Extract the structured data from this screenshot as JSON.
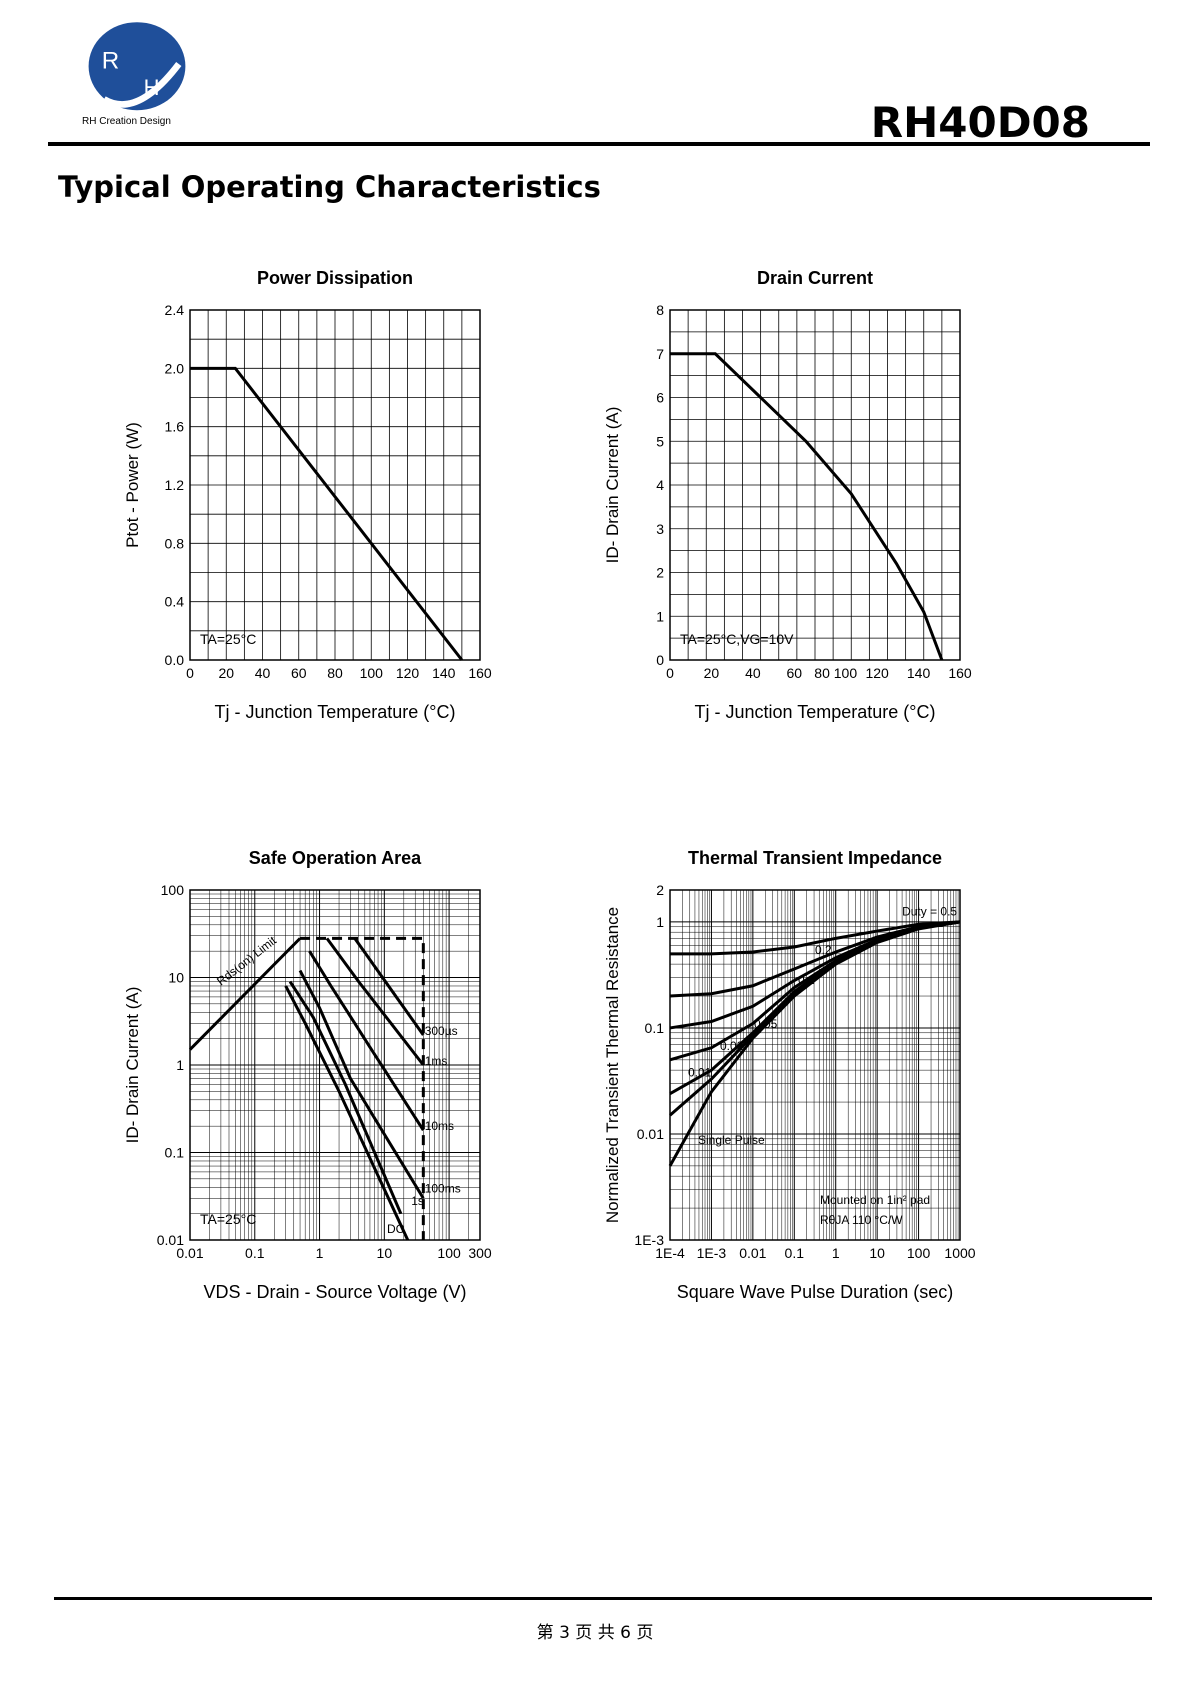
{
  "header": {
    "brand_text": "RH Creation Design",
    "logo_letters": "RH",
    "part_number": "RH40D08"
  },
  "section_title": "Typical Operating Characteristics",
  "footer": {
    "page_text": "第 3 页 共 6 页"
  },
  "colors": {
    "logo_blue": "#1f4f9a",
    "ink": "#000000"
  },
  "chart_data": [
    {
      "type": "line",
      "title": "Power Dissipation",
      "xlabel": "Tj - Junction Temperature (°C)",
      "ylabel": "Ptot - Power (W)",
      "xlim": [
        0,
        160
      ],
      "ylim": [
        0,
        2.4
      ],
      "xticks": [
        "0",
        "20",
        "40",
        "60",
        "80",
        "100",
        "120",
        "140",
        "160"
      ],
      "yticks": [
        "0.0",
        "0.4",
        "0.8",
        "1.2",
        "1.6",
        "2.0",
        "2.4"
      ],
      "grid": true,
      "annotation": "TA=25°C",
      "series": [
        {
          "x": [
            0,
            25,
            150
          ],
          "y": [
            2.0,
            2.0,
            0.0
          ]
        }
      ]
    },
    {
      "type": "line",
      "title": "Drain Current",
      "xlabel": "Tj - Junction Temperature (°C)",
      "ylabel": "ID- Drain Current (A)",
      "xlim": [
        0,
        160
      ],
      "ylim": [
        0,
        8
      ],
      "xticks": [
        "0",
        "20",
        "40",
        "60",
        "80 100",
        "120",
        "140",
        "160"
      ],
      "yticks": [
        "0",
        "1",
        "2",
        "3",
        "4",
        "5",
        "6",
        "7",
        "8"
      ],
      "grid": true,
      "annotation": "TA=25°C,VG=10V",
      "series": [
        {
          "x": [
            0,
            25,
            50,
            75,
            100,
            125,
            140,
            150
          ],
          "y": [
            7,
            7,
            6.0,
            5.0,
            3.8,
            2.2,
            1.1,
            0
          ]
        }
      ]
    },
    {
      "type": "line",
      "title": "Safe Operation Area",
      "xlabel": "VDS - Drain - Source Voltage (V)",
      "ylabel": "ID- Drain Current (A)",
      "xscale": "log",
      "yscale": "log",
      "xlim": [
        0.01,
        300
      ],
      "ylim": [
        0.01,
        100
      ],
      "xticks": [
        "0.01",
        "0.1",
        "1",
        "10",
        "100",
        "300"
      ],
      "yticks": [
        "0.01",
        "0.1",
        "1",
        "10",
        "100"
      ],
      "grid": true,
      "annotation": "TA=25°C",
      "labels": [
        "Rds(on) Limit",
        "300µs",
        "1ms",
        "10ms",
        "100ms",
        "1s",
        "DC"
      ],
      "series": [
        {
          "name": "Rds(on) Limit",
          "x": [
            0.01,
            0.5
          ],
          "y": [
            1.5,
            28
          ]
        },
        {
          "name": "300µs",
          "x": [
            3.5,
            40
          ],
          "y": [
            28,
            2.2
          ]
        },
        {
          "name": "1ms",
          "x": [
            1.3,
            4,
            40
          ],
          "y": [
            28,
            9,
            1
          ]
        },
        {
          "name": "10ms",
          "x": [
            0.7,
            1.5,
            6,
            40
          ],
          "y": [
            20,
            8,
            1.6,
            0.18
          ]
        },
        {
          "name": "100ms",
          "x": [
            0.5,
            1,
            3,
            40
          ],
          "y": [
            12,
            4.5,
            0.7,
            0.03
          ]
        },
        {
          "name": "1s",
          "x": [
            0.35,
            0.8,
            2.5,
            18
          ],
          "y": [
            9,
            3.5,
            0.6,
            0.02
          ]
        },
        {
          "name": "DC",
          "x": [
            0.3,
            0.6,
            2,
            23
          ],
          "y": [
            8,
            3,
            0.5,
            0.01
          ]
        },
        {
          "name": "Limit",
          "x": [
            0.5,
            40,
            40
          ],
          "y": [
            28,
            28,
            0.01
          ]
        }
      ]
    },
    {
      "type": "line",
      "title": "Thermal Transient Impedance",
      "xlabel": "Square Wave Pulse Duration (sec)",
      "ylabel": "Normalized Transient Thermal Resistance",
      "xscale": "log",
      "yscale": "log",
      "xlim": [
        0.0001,
        1000
      ],
      "ylim": [
        0.001,
        2
      ],
      "xticks": [
        "1E-4",
        "1E-3",
        "0.01",
        "0.1",
        "1",
        "10",
        "100",
        "1000"
      ],
      "yticks": [
        "1E-3",
        "0.01",
        "0.1",
        "1",
        "2"
      ],
      "grid": true,
      "annotations": [
        "Mounted on 1in² pad",
        "RθJA 110 °C/W"
      ],
      "labels": [
        "Duty = 0.5",
        "0.2",
        "0.1",
        "0.05",
        "0.02",
        "0.01",
        "Single Pulse"
      ],
      "series": [
        {
          "name": "Duty = 0.5",
          "x": [
            0.0001,
            0.001,
            0.01,
            0.1,
            1,
            10,
            100,
            1000
          ],
          "y": [
            0.5,
            0.5,
            0.52,
            0.58,
            0.7,
            0.82,
            0.95,
            1.0
          ]
        },
        {
          "name": "0.2",
          "x": [
            0.0001,
            0.001,
            0.01,
            0.1,
            1,
            10,
            100,
            1000
          ],
          "y": [
            0.2,
            0.21,
            0.25,
            0.36,
            0.52,
            0.72,
            0.9,
            1.0
          ]
        },
        {
          "name": "0.1",
          "x": [
            0.0001,
            0.001,
            0.01,
            0.1,
            1,
            10,
            100,
            1000
          ],
          "y": [
            0.1,
            0.115,
            0.16,
            0.28,
            0.46,
            0.68,
            0.88,
            1.0
          ]
        },
        {
          "name": "0.05",
          "x": [
            0.0001,
            0.001,
            0.01,
            0.1,
            1,
            10,
            100,
            1000
          ],
          "y": [
            0.05,
            0.065,
            0.11,
            0.24,
            0.43,
            0.66,
            0.87,
            1.0
          ]
        },
        {
          "name": "0.02",
          "x": [
            0.0001,
            0.001,
            0.01,
            0.1,
            1,
            10,
            100,
            1000
          ],
          "y": [
            0.024,
            0.04,
            0.09,
            0.22,
            0.42,
            0.65,
            0.87,
            1.0
          ]
        },
        {
          "name": "0.01",
          "x": [
            0.0001,
            0.001,
            0.01,
            0.1,
            1,
            10,
            100,
            1000
          ],
          "y": [
            0.015,
            0.033,
            0.085,
            0.21,
            0.41,
            0.65,
            0.87,
            1.0
          ]
        },
        {
          "name": "Single Pulse",
          "x": [
            0.0001,
            0.001,
            0.01,
            0.1,
            1,
            10,
            100,
            1000
          ],
          "y": [
            0.005,
            0.025,
            0.08,
            0.2,
            0.4,
            0.64,
            0.86,
            1.0
          ]
        }
      ]
    }
  ]
}
